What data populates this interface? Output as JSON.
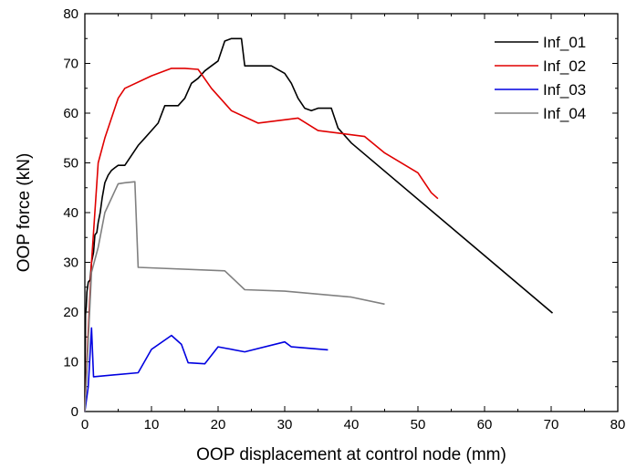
{
  "chart_data": {
    "type": "line",
    "title": "",
    "xlabel": "OOP displacement at control node (mm)",
    "ylabel": "OOP force (kN)",
    "xlim": [
      0,
      80
    ],
    "ylim": [
      0,
      80
    ],
    "xticks": [
      0,
      10,
      20,
      30,
      40,
      50,
      60,
      70,
      80
    ],
    "yticks": [
      0,
      10,
      20,
      30,
      40,
      50,
      60,
      70,
      80
    ],
    "grid": false,
    "legend_position": "top-right",
    "series": [
      {
        "name": "Inf_01",
        "color": "#000000",
        "points": [
          [
            0,
            0
          ],
          [
            0.1,
            19.5
          ],
          [
            0.2,
            21
          ],
          [
            0.3,
            24
          ],
          [
            0.5,
            26
          ],
          [
            0.8,
            26.5
          ],
          [
            1.0,
            30
          ],
          [
            1.3,
            32
          ],
          [
            1.5,
            35.5
          ],
          [
            1.8,
            36
          ],
          [
            2.0,
            38
          ],
          [
            2.3,
            40
          ],
          [
            2.6,
            43
          ],
          [
            3.0,
            46
          ],
          [
            3.5,
            47.5
          ],
          [
            4.0,
            48.5
          ],
          [
            4.5,
            49
          ],
          [
            5.0,
            49.5
          ],
          [
            6.0,
            49.5
          ],
          [
            7.0,
            51.5
          ],
          [
            8.0,
            53.5
          ],
          [
            9.0,
            55
          ],
          [
            10.0,
            56.5
          ],
          [
            11.0,
            58
          ],
          [
            12.0,
            61.5
          ],
          [
            14.0,
            61.5
          ],
          [
            15.0,
            63
          ],
          [
            16.0,
            66
          ],
          [
            17.0,
            67
          ],
          [
            18.0,
            68.5
          ],
          [
            19.0,
            69.5
          ],
          [
            20.0,
            70.5
          ],
          [
            21.0,
            74.5
          ],
          [
            22.0,
            75
          ],
          [
            23.5,
            75
          ],
          [
            24.0,
            69.5
          ],
          [
            28.0,
            69.5
          ],
          [
            30.0,
            68
          ],
          [
            31.0,
            66
          ],
          [
            32.0,
            63
          ],
          [
            33.0,
            61
          ],
          [
            34.0,
            60.5
          ],
          [
            35.0,
            61
          ],
          [
            37.0,
            61
          ],
          [
            38.0,
            57
          ],
          [
            40.0,
            54
          ],
          [
            70.2,
            19.8
          ]
        ]
      },
      {
        "name": "Inf_02",
        "color": "#e00000",
        "points": [
          [
            0,
            0
          ],
          [
            0.5,
            16
          ],
          [
            1.0,
            30
          ],
          [
            2.0,
            50
          ],
          [
            3.0,
            55
          ],
          [
            4.0,
            59
          ],
          [
            5.0,
            63
          ],
          [
            6.0,
            65
          ],
          [
            10.0,
            67.5
          ],
          [
            13.0,
            69
          ],
          [
            15.0,
            69
          ],
          [
            17.0,
            68.8
          ],
          [
            19.0,
            65
          ],
          [
            22.0,
            60.5
          ],
          [
            26.0,
            58
          ],
          [
            32.0,
            59
          ],
          [
            35.0,
            56.5
          ],
          [
            38.0,
            56
          ],
          [
            42.0,
            55.3
          ],
          [
            45.0,
            52
          ],
          [
            50.0,
            48
          ],
          [
            52.0,
            44
          ],
          [
            53.0,
            42.8
          ]
        ]
      },
      {
        "name": "Inf_03",
        "color": "#0000e0",
        "points": [
          [
            0,
            0
          ],
          [
            0.5,
            5
          ],
          [
            1.0,
            16.8
          ],
          [
            1.3,
            7
          ],
          [
            8.0,
            7.8
          ],
          [
            10.0,
            12.5
          ],
          [
            13.0,
            15.3
          ],
          [
            14.5,
            13.5
          ],
          [
            15.5,
            9.8
          ],
          [
            18.0,
            9.6
          ],
          [
            20.0,
            13
          ],
          [
            24.0,
            12
          ],
          [
            30.0,
            14
          ],
          [
            31.0,
            13
          ],
          [
            36.5,
            12.4
          ]
        ]
      },
      {
        "name": "Inf_04",
        "color": "#808080",
        "points": [
          [
            0,
            0
          ],
          [
            1.0,
            28
          ],
          [
            2.0,
            33
          ],
          [
            3.0,
            40
          ],
          [
            5.0,
            45.8
          ],
          [
            6.0,
            46
          ],
          [
            7.5,
            46.2
          ],
          [
            8.0,
            29
          ],
          [
            21.0,
            28.3
          ],
          [
            24.0,
            24.5
          ],
          [
            30.0,
            24.2
          ],
          [
            40.0,
            23
          ],
          [
            45.0,
            21.6
          ]
        ]
      }
    ]
  }
}
